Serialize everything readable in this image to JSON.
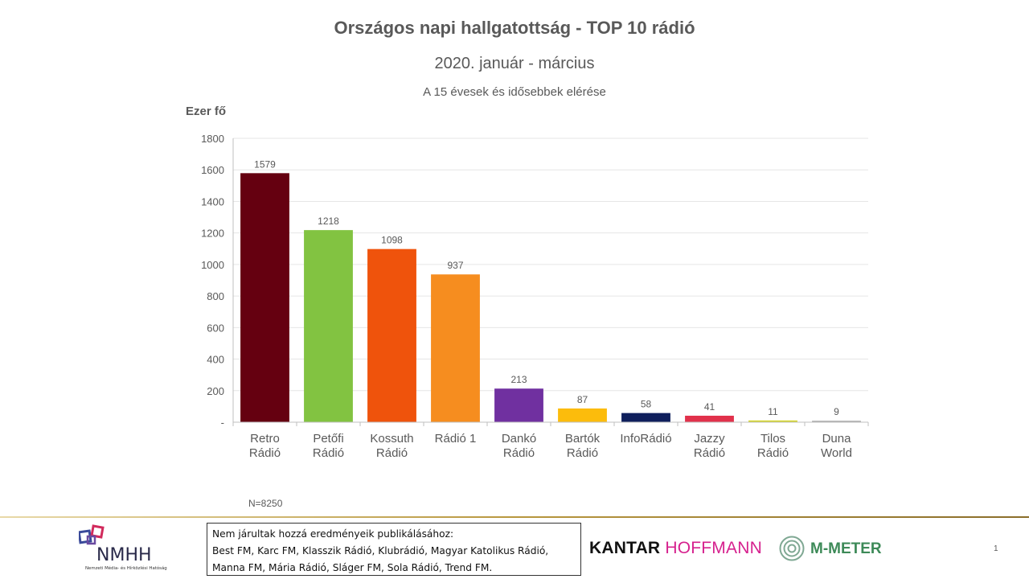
{
  "header": {
    "title": "Országos napi hallgatottság - TOP 10 rádió",
    "subtitle": "2020. január  - március",
    "caption": "A 15 évesek és idősebbek elérése"
  },
  "chart_data": {
    "type": "bar",
    "ylabel": "Ezer fő",
    "ylim": [
      0,
      1800
    ],
    "yticks": [
      0,
      200,
      400,
      600,
      800,
      1000,
      1200,
      1400,
      1600,
      1800
    ],
    "ytick_labels": [
      "-",
      "200",
      "400",
      "600",
      "800",
      "1000",
      "1200",
      "1400",
      "1600",
      "1800"
    ],
    "grid": true,
    "categories": [
      [
        "Retro",
        "Rádió"
      ],
      [
        "Petőfi",
        "Rádió"
      ],
      [
        "Kossuth",
        "Rádió"
      ],
      [
        "Rádió 1"
      ],
      [
        "Dankó",
        "Rádió"
      ],
      [
        "Bartók",
        "Rádió"
      ],
      [
        "InfoRádió"
      ],
      [
        "Jazzy",
        "Rádió"
      ],
      [
        "Tilos",
        "Rádió"
      ],
      [
        "Duna",
        "World"
      ]
    ],
    "values": [
      1579,
      1218,
      1098,
      937,
      213,
      87,
      58,
      41,
      11,
      9
    ],
    "colors": [
      "#650010",
      "#82c341",
      "#ef530c",
      "#f68d1f",
      "#7030a0",
      "#fcbc0c",
      "#0f1f5c",
      "#e1314b",
      "#d4d62a",
      "#aaaaaa"
    ]
  },
  "footnote": "N=8250",
  "footer": {
    "notice_lines": [
      "Nem járultak hozzá eredményeik publikálásához:",
      "Best FM, Karc FM, Klasszik Rádió, Klubrádió, Magyar Katolikus Rádió,",
      "Manna FM, Mária Rádió, Sláger FM, Sola Rádió, Trend FM."
    ],
    "nmhh_logo_text": "NMHH",
    "nmhh_full_name": "Nemzeti Média- és Hírközlési Hatóság",
    "kantar_word": "KANTAR",
    "hoffmann_word": "HOFFMANN",
    "mmeter_text": "M-METER",
    "page_number": "1"
  }
}
